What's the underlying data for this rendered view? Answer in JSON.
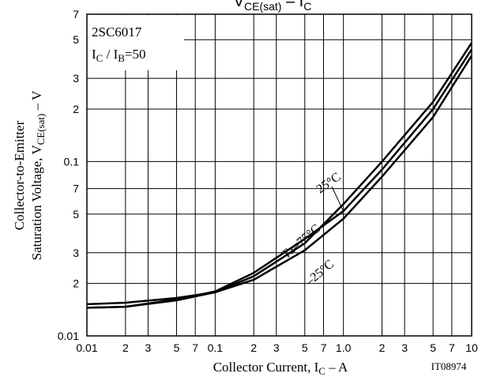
{
  "chart_data": {
    "type": "line",
    "title": [
      "V",
      "CE(sat)",
      " – I",
      "C"
    ],
    "y_label": [
      "Collector-to-Emitter",
      "Saturation Voltage, V",
      "CE(sat)",
      " – V"
    ],
    "x_label": [
      "Collector Current, I",
      "C",
      " – A"
    ],
    "annotation": [
      "2SC6017",
      "I",
      "C",
      " / I",
      "B",
      "=50"
    ],
    "code": "IT08974",
    "log_x": true,
    "log_y": true,
    "grid": true,
    "x": [
      0.01,
      0.02,
      0.05,
      0.1,
      0.2,
      0.5,
      1,
      2,
      5,
      10
    ],
    "series": [
      {
        "name": "25°C",
        "color": "#000000",
        "values": [
          0.0145,
          0.0147,
          0.016,
          0.0178,
          0.022,
          0.034,
          0.057,
          0.1,
          0.22,
          0.48
        ]
      },
      {
        "name": "Ta=75°C",
        "color": "#000000",
        "values": [
          0.0145,
          0.0147,
          0.0162,
          0.018,
          0.023,
          0.036,
          0.052,
          0.09,
          0.2,
          0.44
        ]
      },
      {
        "name": "–25°C",
        "color": "#000000",
        "values": [
          0.0152,
          0.0155,
          0.0165,
          0.0178,
          0.021,
          0.031,
          0.047,
          0.082,
          0.18,
          0.405
        ]
      }
    ],
    "xlim": [
      0.01,
      10
    ],
    "xticks": [
      0.01,
      {
        "value": 0.02,
        "label": "2"
      },
      {
        "value": 0.03,
        "label": "3"
      },
      {
        "value": 0.05,
        "label": "5"
      },
      {
        "value": 0.07,
        "label": "7"
      },
      0.1,
      {
        "value": 0.2,
        "label": "2"
      },
      {
        "value": 0.3,
        "label": "3"
      },
      {
        "value": 0.5,
        "label": "5"
      },
      {
        "value": 0.7,
        "label": "7"
      },
      {
        "value": 1,
        "label": "1.0"
      },
      {
        "value": 2,
        "label": "2"
      },
      {
        "value": 3,
        "label": "3"
      },
      {
        "value": 5,
        "label": "5"
      },
      {
        "value": 7,
        "label": "7"
      },
      10
    ],
    "ylim": [
      0.01,
      0.7
    ],
    "yticks": [
      0.01,
      {
        "value": 0.02,
        "label": "2"
      },
      {
        "value": 0.03,
        "label": "3"
      },
      {
        "value": 0.05,
        "label": "5"
      },
      {
        "value": 0.07,
        "label": "7"
      },
      0.1,
      {
        "value": 0.2,
        "label": "2"
      },
      {
        "value": 0.3,
        "label": "3"
      },
      {
        "value": 0.5,
        "label": "5"
      },
      {
        "value": 0.7,
        "label": "7"
      }
    ]
  }
}
